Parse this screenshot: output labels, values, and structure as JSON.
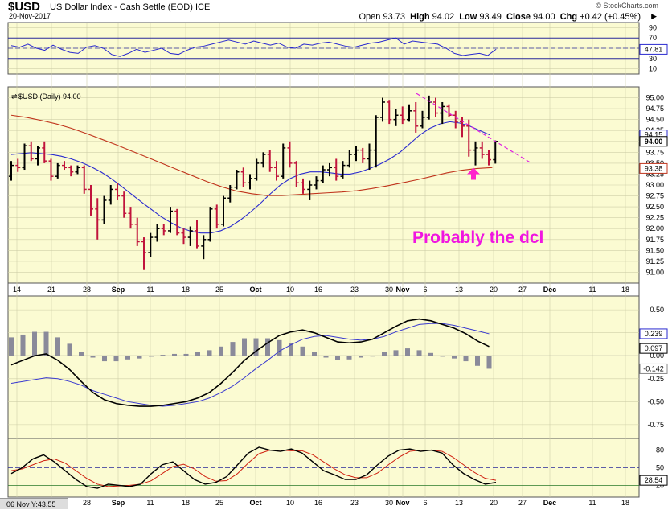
{
  "header": {
    "symbol": "$USD",
    "description": "US Dollar Index - Cash Settle (EOD)",
    "exchange": "ICE",
    "date": "20-Nov-2017",
    "copyright": "© StockCharts.com",
    "quote": {
      "open_label": "Open",
      "open": "93.73",
      "high_label": "High",
      "high": "94.02",
      "low_label": "Low",
      "low": "93.49",
      "close_label": "Close",
      "close": "94.00",
      "chg_label": "Chg",
      "chg": "+0.42 (+0.45%)"
    },
    "zoom_icon": "triangle-right-icon"
  },
  "legend": "$USD (Daily) 94.00",
  "annotation": "Probably the dcl",
  "cursor_readout": "06 Nov Y:43.55",
  "colors": {
    "panel_bg": "#fbfbd2",
    "up_bar": "#000000",
    "down_bar": "#c0143c",
    "ma_short": "#2a2acf",
    "ma_long": "#c0341c",
    "trendline": "#e020e0",
    "arrow": "#ff22cc",
    "macd_line": "#000000",
    "macd_signal": "#3a3ad0",
    "histogram": "#8a8a9a",
    "stoch_signal": "#d02010"
  },
  "chart_data": [
    {
      "type": "line",
      "name": "RSI",
      "ylim": [
        0,
        100
      ],
      "yticks": [
        90,
        70,
        50,
        30,
        10
      ],
      "last_value": "47.81",
      "values": [
        55,
        52,
        58,
        50,
        46,
        56,
        48,
        42,
        40,
        52,
        55,
        50,
        38,
        34,
        40,
        48,
        42,
        46,
        50,
        40,
        38,
        46,
        52,
        54,
        58,
        62,
        66,
        62,
        58,
        64,
        60,
        56,
        60,
        52,
        50,
        58,
        56,
        60,
        62,
        58,
        54,
        52,
        56,
        60,
        62,
        66,
        70,
        58,
        64,
        62,
        60,
        58,
        50,
        40,
        36,
        38,
        40,
        36,
        48
      ]
    },
    {
      "type": "bar",
      "name": "$USD (Daily)",
      "ylim": [
        90.75,
        95.25
      ],
      "yticks": [
        "95.00",
        "94.75",
        "94.50",
        "94.25",
        "94.00",
        "93.75",
        "93.50",
        "93.25",
        "93.00",
        "92.75",
        "92.50",
        "92.25",
        "92.00",
        "91.75",
        "91.50",
        "91.25",
        "91.00"
      ],
      "price_labels": [
        "94.15",
        "94.00",
        "93.38"
      ],
      "x_tick_labels": [
        "14",
        "21",
        "28",
        "Sep",
        "11",
        "18",
        "25",
        "Oct",
        "10",
        "16",
        "23",
        "30",
        "Nov",
        "6",
        "13",
        "20",
        "27",
        "Dec",
        "11",
        "18"
      ],
      "ohlc": [
        [
          93.2,
          93.55,
          93.1,
          93.45
        ],
        [
          93.45,
          93.6,
          93.3,
          93.4
        ],
        [
          93.4,
          93.95,
          93.35,
          93.9
        ],
        [
          93.9,
          94.0,
          93.55,
          93.6
        ],
        [
          93.6,
          93.9,
          93.45,
          93.85
        ],
        [
          93.85,
          94.0,
          93.5,
          93.55
        ],
        [
          93.55,
          93.6,
          93.1,
          93.2
        ],
        [
          93.2,
          93.5,
          93.15,
          93.45
        ],
        [
          93.45,
          93.55,
          93.35,
          93.4
        ],
        [
          93.4,
          93.45,
          93.2,
          93.3
        ],
        [
          93.3,
          93.45,
          93.25,
          93.4
        ],
        [
          93.4,
          93.45,
          92.8,
          92.9
        ],
        [
          92.9,
          93.0,
          92.3,
          92.45
        ],
        [
          92.45,
          92.7,
          91.75,
          92.2
        ],
        [
          92.2,
          92.75,
          92.1,
          92.65
        ],
        [
          92.65,
          93.0,
          92.55,
          92.9
        ],
        [
          92.9,
          93.05,
          92.65,
          92.75
        ],
        [
          92.75,
          92.85,
          92.25,
          92.35
        ],
        [
          92.35,
          92.5,
          92.0,
          92.1
        ],
        [
          92.1,
          92.25,
          91.6,
          91.7
        ],
        [
          91.7,
          91.8,
          91.05,
          91.45
        ],
        [
          91.45,
          91.9,
          91.35,
          91.8
        ],
        [
          91.8,
          92.1,
          91.7,
          92.0
        ],
        [
          92.0,
          92.1,
          91.85,
          91.95
        ],
        [
          91.95,
          92.5,
          91.9,
          92.4
        ],
        [
          92.4,
          92.45,
          91.85,
          91.9
        ],
        [
          91.9,
          92.0,
          91.65,
          91.8
        ],
        [
          91.8,
          92.05,
          91.6,
          91.95
        ],
        [
          91.95,
          92.2,
          91.55,
          91.6
        ],
        [
          91.6,
          91.85,
          91.3,
          91.75
        ],
        [
          91.75,
          92.5,
          91.7,
          92.45
        ],
        [
          92.45,
          92.55,
          92.0,
          92.1
        ],
        [
          92.1,
          92.75,
          92.05,
          92.7
        ],
        [
          92.7,
          93.0,
          92.6,
          92.95
        ],
        [
          92.95,
          93.35,
          92.9,
          93.3
        ],
        [
          93.3,
          93.4,
          92.95,
          93.05
        ],
        [
          93.05,
          93.25,
          92.9,
          93.15
        ],
        [
          93.15,
          93.6,
          93.1,
          93.5
        ],
        [
          93.5,
          93.75,
          93.4,
          93.7
        ],
        [
          93.7,
          93.8,
          93.3,
          93.4
        ],
        [
          93.4,
          93.55,
          93.1,
          93.2
        ],
        [
          93.2,
          93.95,
          93.15,
          93.85
        ],
        [
          93.85,
          94.0,
          93.4,
          93.5
        ],
        [
          93.5,
          93.55,
          92.95,
          93.05
        ],
        [
          93.05,
          93.15,
          92.8,
          92.9
        ],
        [
          92.9,
          93.1,
          92.65,
          93.0
        ],
        [
          93.0,
          93.2,
          92.9,
          93.1
        ],
        [
          93.1,
          93.45,
          93.05,
          93.35
        ],
        [
          93.35,
          93.5,
          93.2,
          93.4
        ],
        [
          93.4,
          93.6,
          93.1,
          93.2
        ],
        [
          93.2,
          93.55,
          93.15,
          93.45
        ],
        [
          93.45,
          93.8,
          93.4,
          93.7
        ],
        [
          93.7,
          93.9,
          93.55,
          93.8
        ],
        [
          93.8,
          93.85,
          93.5,
          93.6
        ],
        [
          93.6,
          93.95,
          93.35,
          93.8
        ],
        [
          93.8,
          94.6,
          93.4,
          94.55
        ],
        [
          94.55,
          95.0,
          94.45,
          94.9
        ],
        [
          94.9,
          94.95,
          94.4,
          94.5
        ],
        [
          94.5,
          94.75,
          94.35,
          94.6
        ],
        [
          94.6,
          94.8,
          94.4,
          94.5
        ],
        [
          94.5,
          94.85,
          94.45,
          94.7
        ],
        [
          94.7,
          94.9,
          94.2,
          94.35
        ],
        [
          94.35,
          94.7,
          94.3,
          94.55
        ],
        [
          94.55,
          95.05,
          94.5,
          94.9
        ],
        [
          94.9,
          95.0,
          94.55,
          94.65
        ],
        [
          94.65,
          94.9,
          94.4,
          94.8
        ],
        [
          94.8,
          94.85,
          94.55,
          94.6
        ],
        [
          94.6,
          94.7,
          94.3,
          94.45
        ],
        [
          94.45,
          94.55,
          94.1,
          94.35
        ],
        [
          94.35,
          94.5,
          93.65,
          93.8
        ],
        [
          93.8,
          94.0,
          93.45,
          93.85
        ],
        [
          93.85,
          94.0,
          93.6,
          93.7
        ],
        [
          93.7,
          93.8,
          93.45,
          93.58
        ],
        [
          93.58,
          94.02,
          93.49,
          94.0
        ]
      ],
      "sma_short": [
        93.7,
        93.72,
        93.74,
        93.72,
        93.7,
        93.66,
        93.6,
        93.52,
        93.42,
        93.3,
        93.15,
        92.98,
        92.8,
        92.62,
        92.45,
        92.28,
        92.14,
        92.02,
        91.94,
        91.9,
        91.9,
        91.95,
        92.05,
        92.2,
        92.38,
        92.58,
        92.8,
        93.0,
        93.15,
        93.25,
        93.3,
        93.3,
        93.28,
        93.25,
        93.25,
        93.3,
        93.38,
        93.48,
        93.6,
        93.75,
        93.95,
        94.15,
        94.3,
        94.4,
        94.45,
        94.42,
        94.35,
        94.25,
        94.15
      ],
      "sma_long": [
        94.6,
        94.55,
        94.48,
        94.4,
        94.3,
        94.18,
        94.05,
        93.92,
        93.78,
        93.64,
        93.5,
        93.36,
        93.22,
        93.08,
        92.96,
        92.86,
        92.8,
        92.76,
        92.76,
        92.78,
        92.8,
        92.82,
        92.84,
        92.87,
        92.92,
        92.98,
        93.05,
        93.12,
        93.2,
        93.28,
        93.34,
        93.38,
        93.4
      ],
      "trendline": {
        "from_price": 95.1,
        "to_price": 93.5
      },
      "arrow_label_price": 93.25
    },
    {
      "type": "line",
      "name": "MACD",
      "ylim": [
        -0.9,
        0.65
      ],
      "yticks": [
        "0.50",
        "0.25",
        "0.00",
        "-0.25",
        "-0.50",
        "-0.75"
      ],
      "value_labels": [
        "0.239",
        "0.097",
        "-0.142"
      ],
      "macd": [
        -0.1,
        -0.05,
        0.0,
        0.02,
        -0.05,
        -0.15,
        -0.28,
        -0.4,
        -0.48,
        -0.52,
        -0.54,
        -0.55,
        -0.55,
        -0.54,
        -0.52,
        -0.5,
        -0.46,
        -0.4,
        -0.3,
        -0.18,
        -0.05,
        0.05,
        0.14,
        0.22,
        0.26,
        0.28,
        0.25,
        0.2,
        0.15,
        0.14,
        0.15,
        0.18,
        0.25,
        0.32,
        0.38,
        0.4,
        0.38,
        0.34,
        0.3,
        0.24,
        0.16,
        0.1
      ],
      "signal": [
        -0.3,
        -0.28,
        -0.26,
        -0.24,
        -0.25,
        -0.28,
        -0.32,
        -0.38,
        -0.42,
        -0.46,
        -0.5,
        -0.52,
        -0.54,
        -0.55,
        -0.54,
        -0.52,
        -0.5,
        -0.46,
        -0.4,
        -0.33,
        -0.24,
        -0.14,
        -0.05,
        0.05,
        0.12,
        0.18,
        0.21,
        0.22,
        0.2,
        0.18,
        0.17,
        0.18,
        0.21,
        0.26,
        0.3,
        0.34,
        0.35,
        0.35,
        0.33,
        0.3,
        0.27,
        0.239
      ],
      "histogram": [
        0.2,
        0.23,
        0.26,
        0.26,
        0.2,
        0.13,
        0.04,
        -0.02,
        -0.06,
        -0.06,
        -0.04,
        -0.03,
        -0.01,
        0.01,
        0.02,
        0.02,
        0.04,
        0.06,
        0.1,
        0.15,
        0.19,
        0.19,
        0.19,
        0.17,
        0.14,
        0.1,
        0.04,
        -0.02,
        -0.05,
        -0.04,
        -0.02,
        0.0,
        0.04,
        0.06,
        0.08,
        0.06,
        0.03,
        -0.01,
        -0.03,
        -0.06,
        -0.11,
        -0.142
      ]
    },
    {
      "type": "line",
      "name": "Stochastic",
      "ylim": [
        0,
        100
      ],
      "yticks": [
        "80",
        "50",
        "20"
      ],
      "last_value": "28.54",
      "k": [
        40,
        50,
        65,
        72,
        60,
        45,
        30,
        18,
        15,
        22,
        20,
        18,
        22,
        40,
        55,
        60,
        45,
        30,
        22,
        25,
        35,
        55,
        75,
        85,
        80,
        78,
        82,
        75,
        60,
        45,
        38,
        30,
        30,
        38,
        55,
        70,
        80,
        82,
        78,
        80,
        75,
        55,
        40,
        30,
        22,
        25
      ],
      "d": [
        45,
        48,
        55,
        62,
        65,
        58,
        45,
        32,
        22,
        18,
        19,
        20,
        22,
        28,
        40,
        52,
        56,
        48,
        35,
        27,
        28,
        40,
        58,
        74,
        80,
        80,
        79,
        79,
        72,
        60,
        48,
        38,
        33,
        33,
        41,
        55,
        68,
        78,
        80,
        80,
        78,
        68,
        55,
        42,
        32,
        28.54
      ]
    }
  ]
}
